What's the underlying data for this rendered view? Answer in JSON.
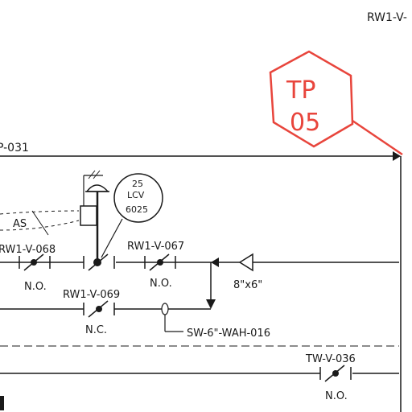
{
  "drawing": {
    "label_top_right": "RW1-V-",
    "label_line_left": "P-031",
    "stamp": {
      "line1": "TP",
      "line2": "05",
      "color": "#e8453c"
    },
    "instrument": {
      "line1": "25",
      "line2": "LCV",
      "line3": "6025"
    },
    "signal_label": "AS",
    "valves": [
      {
        "tag": "RW1-V-068",
        "state": "N.O."
      },
      {
        "tag": "RW1-V-067",
        "state": "N.O."
      },
      {
        "tag": "RW1-V-069",
        "state": "N.C."
      },
      {
        "tag": "TW-V-036",
        "state": "N.O."
      }
    ],
    "reducer_size": "8\"x6\"",
    "drain_line": "SW-6\"-WAH-016"
  }
}
